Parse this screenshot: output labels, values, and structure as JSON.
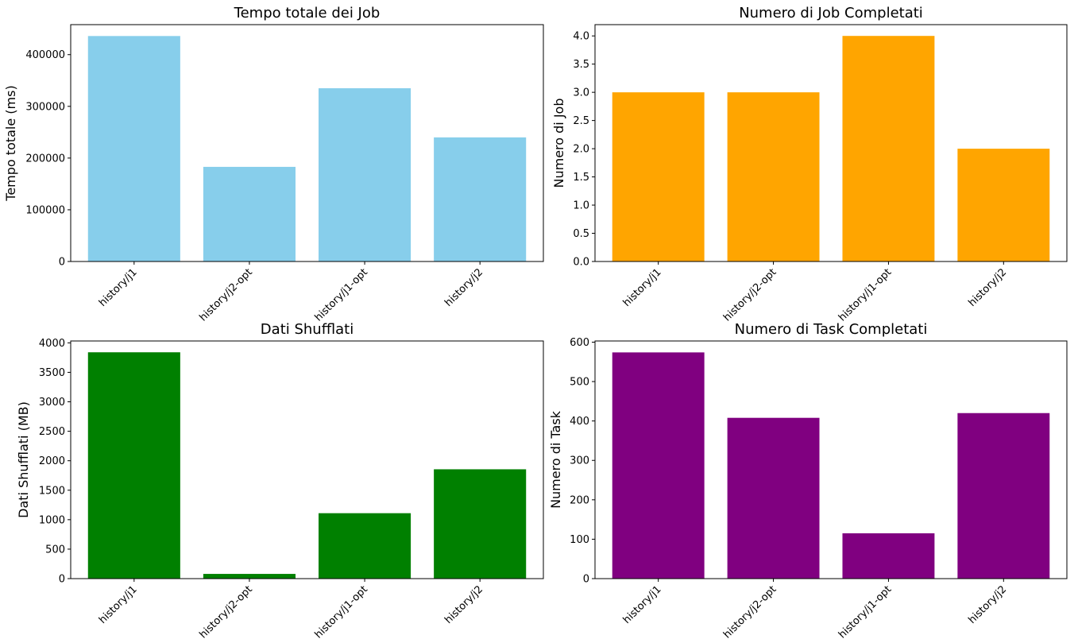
{
  "chart_data": [
    {
      "type": "bar",
      "title": "Tempo totale dei Job",
      "ylabel": "Tempo totale (ms)",
      "categories": [
        "history/j1",
        "history/j2-opt",
        "history/j1-opt",
        "history/j2"
      ],
      "values": [
        436000,
        183000,
        335000,
        240000
      ],
      "ylim": [
        0,
        458000
      ],
      "yticks": [
        0,
        100000,
        200000,
        300000,
        400000
      ],
      "color": "#87ceeb"
    },
    {
      "type": "bar",
      "title": "Numero di Job Completati",
      "ylabel": "Numero di Job",
      "categories": [
        "history/j1",
        "history/j2-opt",
        "history/j1-opt",
        "history/j2"
      ],
      "values": [
        3,
        3,
        4,
        2
      ],
      "ylim": [
        0,
        4.2
      ],
      "yticks": [
        0,
        0.5,
        1,
        1.5,
        2,
        2.5,
        3,
        3.5,
        4
      ],
      "tick_decimals": 1,
      "color": "#ffa500"
    },
    {
      "type": "bar",
      "title": "Dati Shufflati",
      "ylabel": "Dati Shufflati (MB)",
      "categories": [
        "history/j1",
        "history/j2-opt",
        "history/j1-opt",
        "history/j2"
      ],
      "values": [
        3840,
        80,
        1110,
        1855
      ],
      "ylim": [
        0,
        4032
      ],
      "yticks": [
        0,
        500,
        1000,
        1500,
        2000,
        2500,
        3000,
        3500,
        4000
      ],
      "color": "#008000"
    },
    {
      "type": "bar",
      "title": "Numero di Task Completati",
      "ylabel": "Numero di Task",
      "categories": [
        "history/j1",
        "history/j2-opt",
        "history/j1-opt",
        "history/j2"
      ],
      "values": [
        574,
        408,
        115,
        420
      ],
      "ylim": [
        0,
        603
      ],
      "yticks": [
        0,
        100,
        200,
        300,
        400,
        500,
        600
      ],
      "color": "#800080"
    }
  ]
}
